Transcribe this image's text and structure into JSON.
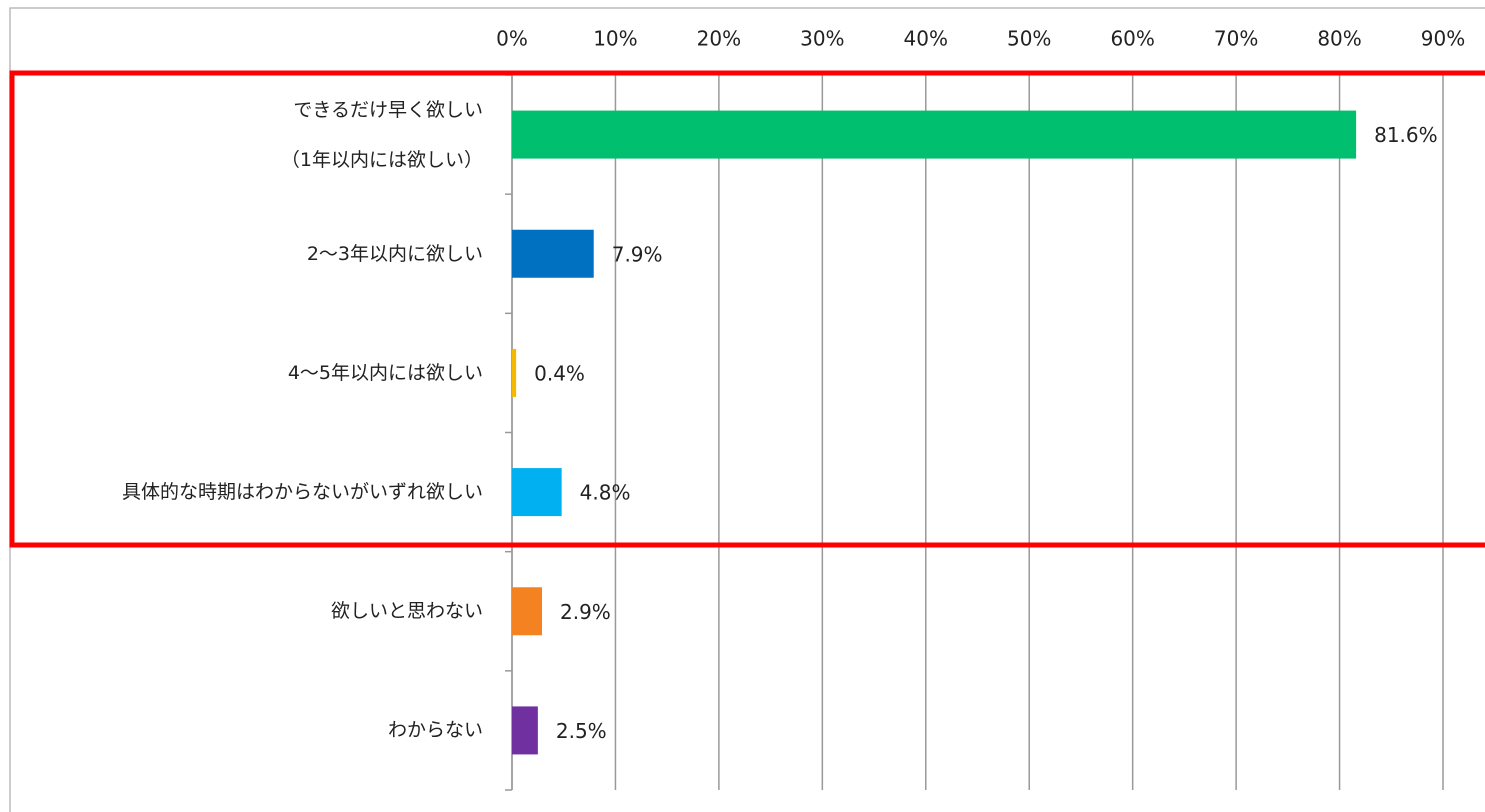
{
  "chart_data": {
    "type": "bar",
    "orientation": "horizontal",
    "categories": [
      "できるだけ早く欲しい\n（1年以内には欲しい）",
      "2～3年以内に欲しい",
      "4～5年以内には欲しい",
      "具体的な時期はわからないがいずれ欲しい",
      "欲しいと思わない",
      "わからない"
    ],
    "values": [
      81.6,
      7.9,
      0.4,
      4.8,
      2.9,
      2.5
    ],
    "value_labels": [
      "81.6%",
      "7.9%",
      "0.4%",
      "4.8%",
      "2.9%",
      "2.5%"
    ],
    "colors": [
      "#00bf6f",
      "#0070c0",
      "#f5b800",
      "#00b0f0",
      "#f58220",
      "#7030a0"
    ],
    "xlim": [
      0,
      90
    ],
    "xticks": [
      {
        "value": 0,
        "label": "0%"
      },
      {
        "value": 10,
        "label": "10%"
      },
      {
        "value": 20,
        "label": "20%"
      },
      {
        "value": 30,
        "label": "30%"
      },
      {
        "value": 40,
        "label": "40%"
      },
      {
        "value": 50,
        "label": "50%"
      },
      {
        "value": 60,
        "label": "60%"
      },
      {
        "value": 70,
        "label": "70%"
      },
      {
        "value": 80,
        "label": "80%"
      },
      {
        "value": 90,
        "label": "90%"
      }
    ],
    "grid": true
  }
}
